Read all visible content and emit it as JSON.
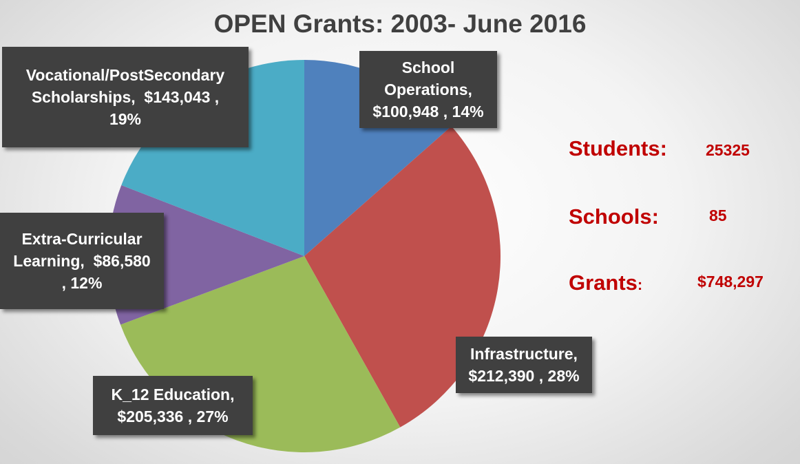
{
  "chart_data": {
    "type": "pie",
    "title": "OPEN Grants: 2003- June 2016",
    "slices": [
      {
        "category": "School Operations",
        "value": 100948,
        "percent": 14,
        "color": "#4f81bd",
        "label_lines": [
          "School",
          "Operations,",
          "$100,948 , 14%"
        ]
      },
      {
        "category": "Infrastructure",
        "value": 212390,
        "percent": 28,
        "color": "#c0504d",
        "label_lines": [
          "Infrastructure,",
          "$212,390 , 28%"
        ]
      },
      {
        "category": "K_12 Education",
        "value": 205336,
        "percent": 27,
        "color": "#9bbb59",
        "label_lines": [
          "K_12 Education,",
          "$205,336 , 27%"
        ]
      },
      {
        "category": "Extra-Curricular Learning",
        "value": 86580,
        "percent": 12,
        "color": "#8064a2",
        "label_lines": [
          "Extra-Curricular",
          "Learning,  $86,580",
          ", 12%"
        ]
      },
      {
        "category": "Vocational/PostSecondary Scholarships",
        "value": 143043,
        "percent": 19,
        "color": "#4bacc6",
        "label_lines": [
          "Vocational/PostSecondary",
          "Scholarships,  $143,043 ,",
          "19%"
        ]
      }
    ]
  },
  "stats": {
    "students": {
      "label": "Students:",
      "suffix": "",
      "value": "25325"
    },
    "schools": {
      "label": "Schools:",
      "suffix": "",
      "value": "85"
    },
    "grants": {
      "label": "Grants",
      "suffix": ":",
      "value": "$748,297"
    }
  }
}
